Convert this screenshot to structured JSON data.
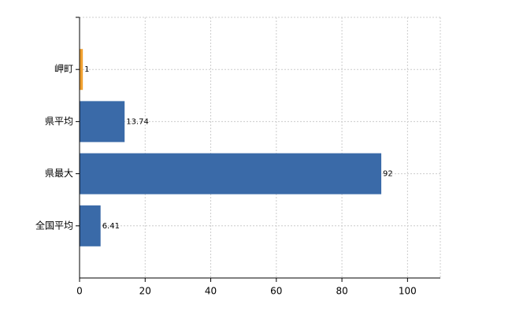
{
  "chart_data": {
    "type": "bar",
    "orientation": "horizontal",
    "categories": [
      "岬町",
      "県平均",
      "県最大",
      "全国平均"
    ],
    "values": [
      1,
      13.74,
      92,
      6.41
    ],
    "colors": [
      "#f0a030",
      "#3a6aa8",
      "#3a6aa8",
      "#3a6aa8"
    ],
    "xlim": [
      0,
      110
    ],
    "xticks": [
      0,
      20,
      40,
      60,
      80,
      100
    ],
    "grid": true
  }
}
